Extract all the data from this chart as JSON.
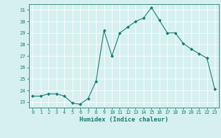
{
  "x": [
    0,
    1,
    2,
    3,
    4,
    5,
    6,
    7,
    8,
    9,
    10,
    11,
    12,
    13,
    14,
    15,
    16,
    17,
    18,
    19,
    20,
    21,
    22,
    23
  ],
  "y": [
    23.5,
    23.5,
    23.7,
    23.7,
    23.5,
    22.9,
    22.8,
    23.3,
    24.8,
    29.2,
    27.0,
    29.0,
    29.5,
    30.0,
    30.3,
    31.2,
    30.1,
    29.0,
    29.0,
    28.1,
    27.6,
    27.2,
    26.8,
    24.1
  ],
  "line_color": "#1a7a6e",
  "marker": "D",
  "marker_size": 2,
  "xlabel": "Humidex (Indice chaleur)",
  "xlim": [
    -0.5,
    23.5
  ],
  "ylim": [
    22.5,
    31.5
  ],
  "yticks": [
    23,
    24,
    25,
    26,
    27,
    28,
    29,
    30,
    31
  ],
  "xticks": [
    0,
    1,
    2,
    3,
    4,
    5,
    6,
    7,
    8,
    9,
    10,
    11,
    12,
    13,
    14,
    15,
    16,
    17,
    18,
    19,
    20,
    21,
    22,
    23
  ],
  "bg_color": "#d6f0f0",
  "grid_color": "#ffffff",
  "line_width": 0.8,
  "tick_color": "#1a7a6e",
  "label_color": "#1a7a6e",
  "tick_fontsize": 5.0,
  "xlabel_fontsize": 6.5
}
